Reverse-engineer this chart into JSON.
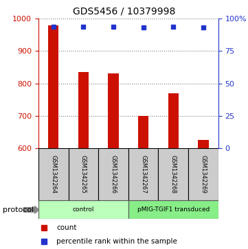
{
  "title": "GDS5456 / 10379998",
  "samples": [
    "GSM1342264",
    "GSM1342265",
    "GSM1342266",
    "GSM1342267",
    "GSM1342268",
    "GSM1342269"
  ],
  "counts": [
    980,
    835,
    830,
    700,
    770,
    625
  ],
  "percentile_ranks": [
    94,
    94,
    94,
    93,
    94,
    93
  ],
  "ylim_left": [
    600,
    1000
  ],
  "ylim_right": [
    0,
    100
  ],
  "yticks_left": [
    600,
    700,
    800,
    900,
    1000
  ],
  "yticks_right": [
    0,
    25,
    50,
    75,
    100
  ],
  "ytick_labels_right": [
    "0",
    "25",
    "50",
    "75",
    "100%"
  ],
  "bar_color": "#cc1100",
  "marker_color": "#2233cc",
  "groups": [
    {
      "label": "control",
      "indices": [
        0,
        1,
        2
      ],
      "color": "#bbffbb"
    },
    {
      "label": "pMIG-TGIF1 transduced",
      "indices": [
        3,
        4,
        5
      ],
      "color": "#88ee88"
    }
  ],
  "protocol_label": "protocol",
  "legend_count_label": "count",
  "legend_pct_label": "percentile rank within the sample",
  "bar_bottom": 600,
  "grid_color": "#777777",
  "sample_box_color": "#cccccc",
  "bar_width": 0.35
}
